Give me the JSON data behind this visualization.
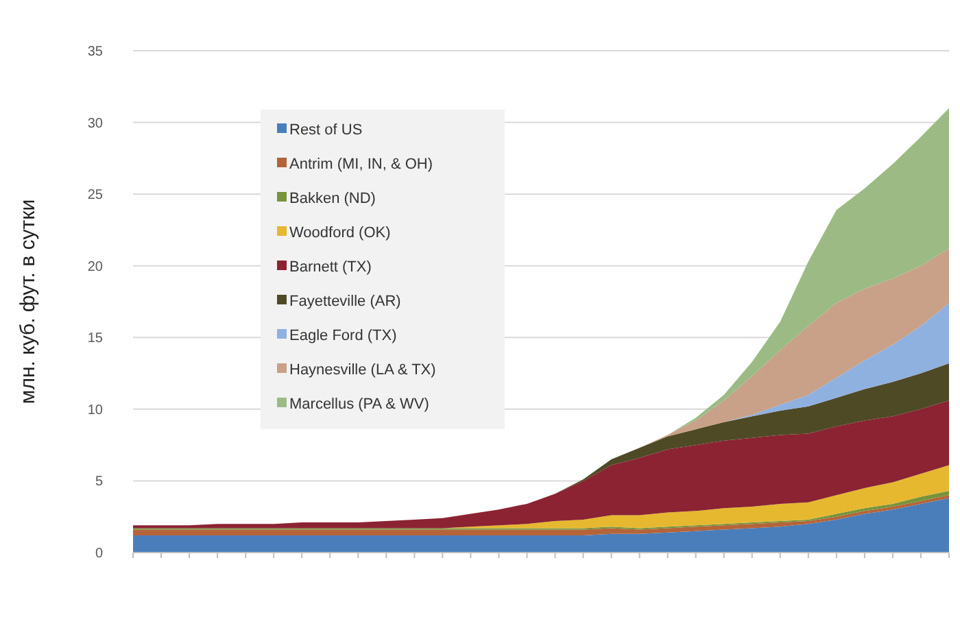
{
  "chart_data": {
    "type": "area",
    "stacked": true,
    "ylabel": "млн. куб. фут. в сутки",
    "ylim": [
      0,
      35
    ],
    "yticks": [
      0,
      5,
      10,
      15,
      20,
      25,
      30,
      35
    ],
    "grid": "y",
    "legend": "top left",
    "tick_labels": "y",
    "categories": [
      null,
      null,
      null,
      null,
      null,
      null,
      null,
      null,
      null,
      null,
      null,
      null,
      null,
      null,
      null,
      null,
      null,
      null,
      null,
      null,
      null,
      null,
      null,
      null,
      null,
      null,
      null,
      null,
      null,
      null
    ],
    "series": [
      {
        "name": "Rest of US",
        "color": "#4a7ebb",
        "values": [
          1.2,
          1.2,
          1.2,
          1.2,
          1.2,
          1.2,
          1.2,
          1.2,
          1.2,
          1.2,
          1.2,
          1.2,
          1.2,
          1.2,
          1.2,
          1.2,
          1.2,
          1.3,
          1.3,
          1.4,
          1.5,
          1.6,
          1.7,
          1.8,
          2.0,
          2.3,
          2.7,
          3.0,
          3.4,
          3.8
        ]
      },
      {
        "name": "Antrim (MI, IN, & OH)",
        "color": "#b5643a",
        "values": [
          0.4,
          0.4,
          0.4,
          0.4,
          0.4,
          0.4,
          0.4,
          0.4,
          0.4,
          0.4,
          0.4,
          0.4,
          0.4,
          0.4,
          0.4,
          0.4,
          0.4,
          0.4,
          0.3,
          0.3,
          0.3,
          0.3,
          0.3,
          0.3,
          0.2,
          0.2,
          0.2,
          0.2,
          0.2,
          0.2
        ]
      },
      {
        "name": "Bakken (ND)",
        "color": "#77933c",
        "values": [
          0.1,
          0.1,
          0.1,
          0.1,
          0.1,
          0.1,
          0.1,
          0.1,
          0.1,
          0.1,
          0.1,
          0.1,
          0.1,
          0.1,
          0.1,
          0.1,
          0.1,
          0.1,
          0.1,
          0.1,
          0.1,
          0.1,
          0.1,
          0.1,
          0.1,
          0.2,
          0.2,
          0.2,
          0.3,
          0.3
        ]
      },
      {
        "name": "Woodford (OK)",
        "color": "#e6b830",
        "values": [
          0,
          0,
          0,
          0,
          0,
          0,
          0,
          0,
          0,
          0,
          0,
          0,
          0.1,
          0.2,
          0.3,
          0.5,
          0.6,
          0.8,
          0.9,
          1.0,
          1.0,
          1.1,
          1.1,
          1.2,
          1.2,
          1.3,
          1.4,
          1.5,
          1.6,
          1.8
        ]
      },
      {
        "name": "Barnett (TX)",
        "color": "#8b2332",
        "values": [
          0.2,
          0.2,
          0.2,
          0.3,
          0.3,
          0.3,
          0.4,
          0.4,
          0.4,
          0.5,
          0.6,
          0.7,
          0.9,
          1.1,
          1.4,
          1.9,
          2.7,
          3.5,
          4.0,
          4.4,
          4.6,
          4.7,
          4.8,
          4.8,
          4.8,
          4.8,
          4.7,
          4.6,
          4.5,
          4.5
        ]
      },
      {
        "name": "Fayetteville (AR)",
        "color": "#4f4a26",
        "values": [
          0,
          0,
          0,
          0,
          0,
          0,
          0,
          0,
          0,
          0,
          0,
          0,
          0,
          0,
          0,
          0,
          0.1,
          0.4,
          0.7,
          0.9,
          1.1,
          1.3,
          1.5,
          1.7,
          1.9,
          2.0,
          2.2,
          2.4,
          2.5,
          2.6
        ]
      },
      {
        "name": "Eagle Ford (TX)",
        "color": "#8fb1e0",
        "values": [
          0,
          0,
          0,
          0,
          0,
          0,
          0,
          0,
          0,
          0,
          0,
          0,
          0,
          0,
          0,
          0,
          0,
          0,
          0,
          0,
          0,
          0,
          0.1,
          0.4,
          0.8,
          1.4,
          2.0,
          2.6,
          3.3,
          4.2
        ]
      },
      {
        "name": "Haynesville (LA & TX)",
        "color": "#c9a088",
        "values": [
          0,
          0,
          0,
          0,
          0,
          0,
          0,
          0,
          0,
          0,
          0,
          0,
          0,
          0,
          0,
          0,
          0,
          0,
          0,
          0.1,
          0.6,
          1.5,
          2.7,
          3.8,
          4.8,
          5.2,
          5.0,
          4.6,
          4.2,
          3.8
        ]
      },
      {
        "name": "Marcellus (PA & WV)",
        "color": "#9cbb84",
        "values": [
          0,
          0,
          0,
          0,
          0,
          0,
          0,
          0,
          0,
          0,
          0,
          0,
          0,
          0,
          0,
          0,
          0,
          0,
          0,
          0,
          0.2,
          0.4,
          1.0,
          2.0,
          4.5,
          6.5,
          7.0,
          8.0,
          9.0,
          9.8
        ]
      }
    ]
  }
}
